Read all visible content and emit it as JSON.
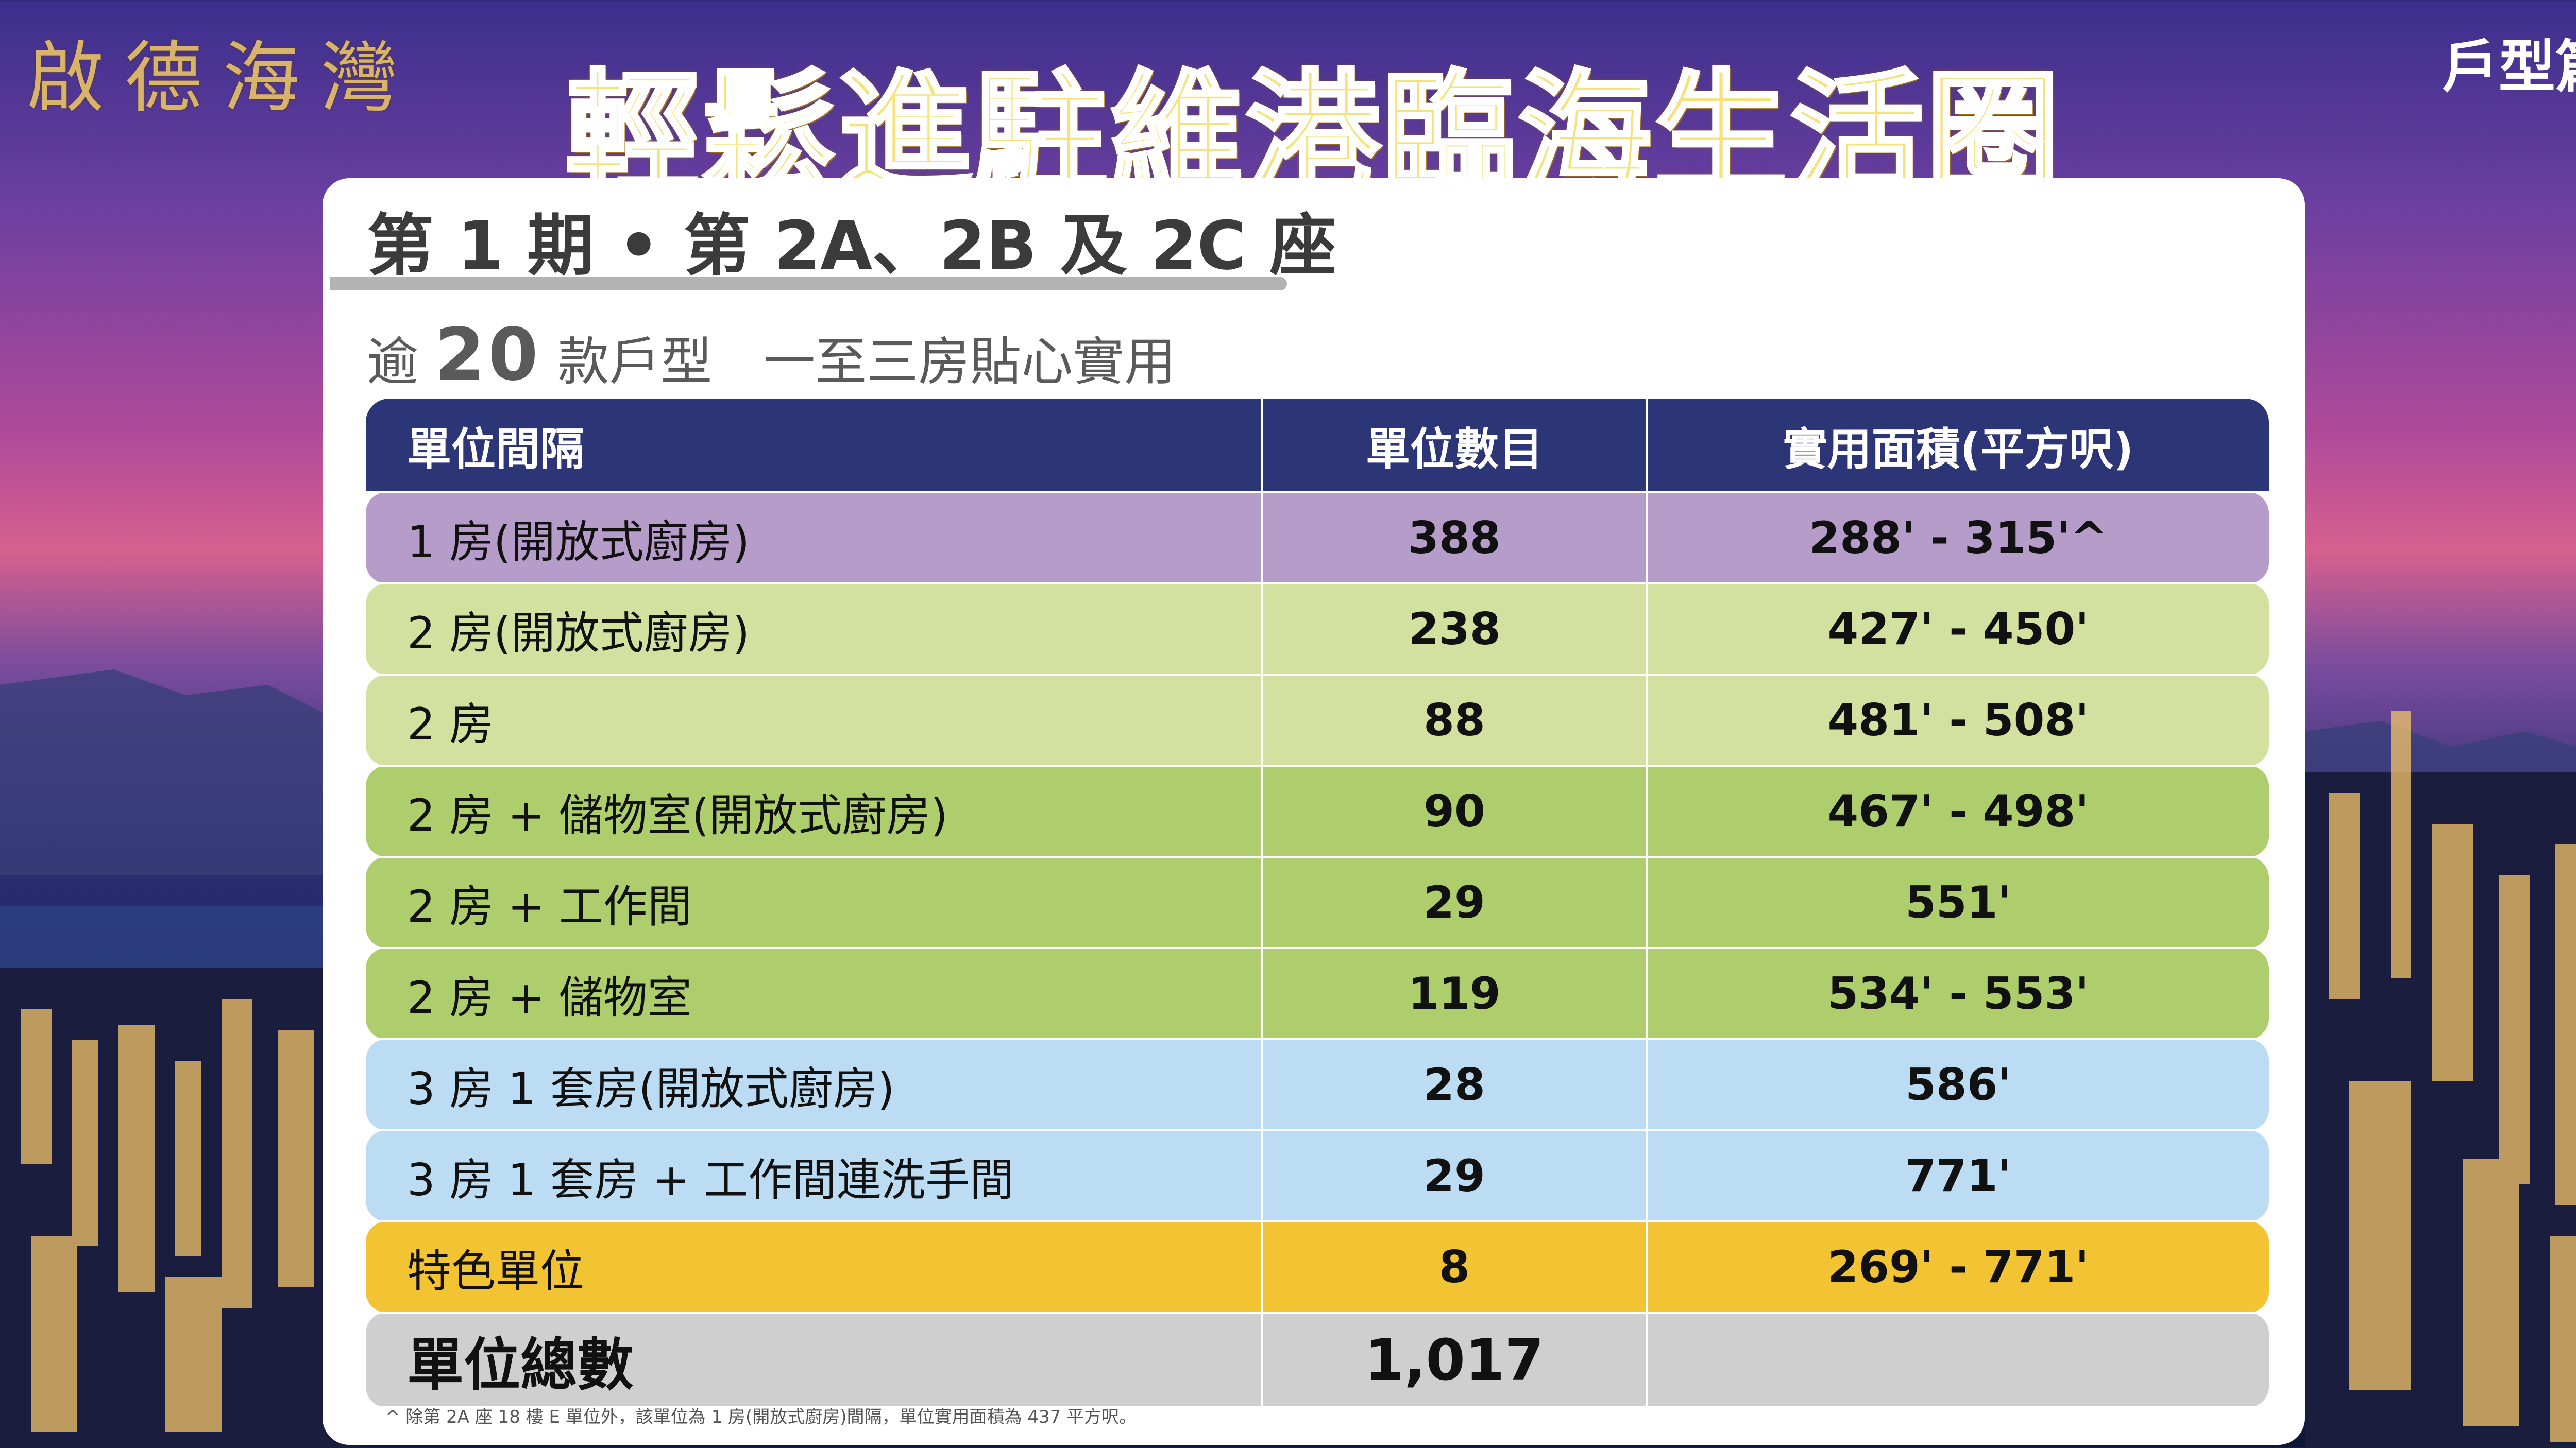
{
  "brand": "啟德海灣",
  "page_tag": "戶型篇",
  "headline": "輕鬆進駐維港臨海生活圈",
  "section": {
    "title": "第 1 期 • 第 2A、2B 及 2C 座",
    "subtitle_prefix": "逾",
    "subtitle_number": "20",
    "subtitle_suffix": "款戶型　一至三房貼心實用"
  },
  "table": {
    "headers": [
      "單位間隔",
      "單位數目",
      "實用面積(平方呎)"
    ],
    "rows": [
      {
        "layout": "1 房(開放式廚房)",
        "count": "388",
        "area": "288' - 315'^",
        "color": "#b59cc9"
      },
      {
        "layout": "2 房(開放式廚房)",
        "count": "238",
        "area": "427' - 450'",
        "color": "#d3e1a0"
      },
      {
        "layout": "2 房",
        "count": "88",
        "area": "481' - 508'",
        "color": "#d3e1a0"
      },
      {
        "layout": "2 房 + 儲物室(開放式廚房)",
        "count": "90",
        "area": "467' - 498'",
        "color": "#aecd6c"
      },
      {
        "layout": "2 房 + 工作間",
        "count": "29",
        "area": "551'",
        "color": "#aecd6c"
      },
      {
        "layout": "2 房 + 儲物室",
        "count": "119",
        "area": "534' - 553'",
        "color": "#aecd6c"
      },
      {
        "layout": "3 房 1 套房(開放式廚房)",
        "count": "28",
        "area": "586'",
        "color": "#bcdcf3"
      },
      {
        "layout": "3 房 1 套房 + 工作間連洗手間",
        "count": "29",
        "area": "771'",
        "color": "#bcdcf3"
      },
      {
        "layout": "特色單位",
        "count": "8",
        "area": "269' - 771'",
        "color": "#f2c434"
      }
    ],
    "total_label": "單位總數",
    "total_count": "1,017"
  },
  "footnote": "^ 除第 2A 座 18 樓 E 單位外，該單位為 1 房(開放式廚房)間隔，單位實用面積為 437 平方呎。",
  "colors": {
    "header_bg": "#2c3576",
    "headline_fill": "#f6e27a",
    "brand_gold": "#d8b46a"
  }
}
